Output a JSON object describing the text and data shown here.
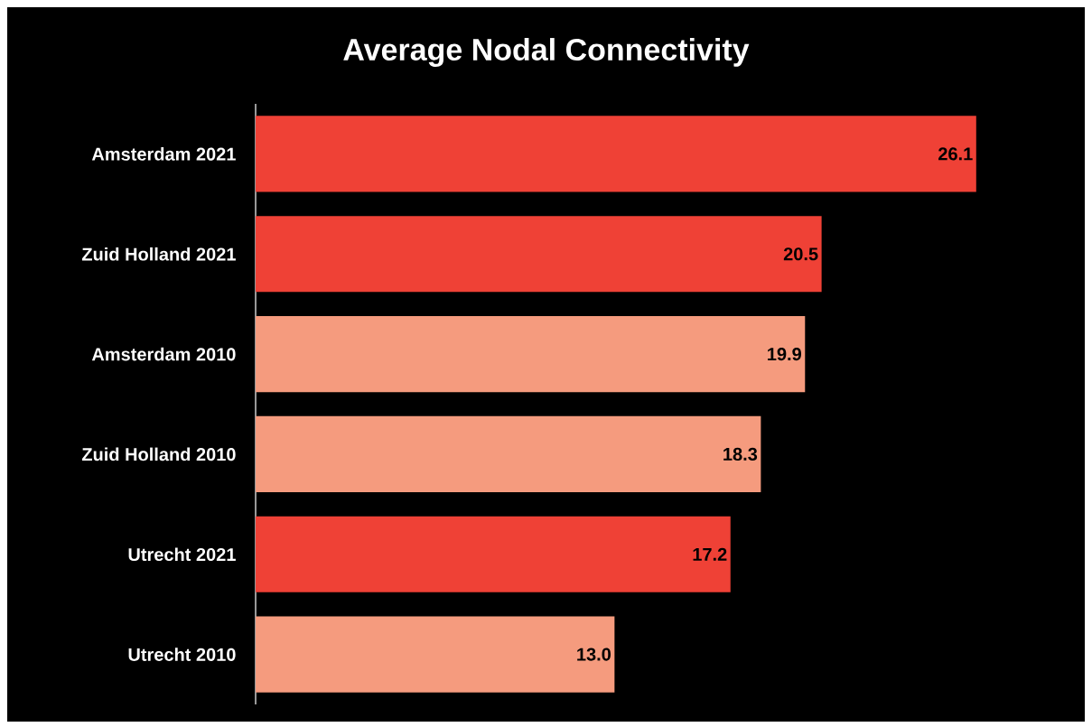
{
  "chart_data": {
    "type": "bar",
    "orientation": "horizontal",
    "title": "Average Nodal Connectivity",
    "categories": [
      "Amsterdam 2021",
      "Zuid Holland 2021",
      "Amsterdam 2010",
      "Zuid Holland 2010",
      "Utrecht 2021",
      "Utrecht 2010"
    ],
    "values": [
      26.1,
      20.5,
      19.9,
      18.3,
      17.2,
      13.0
    ],
    "colors": [
      "#ef4136",
      "#ef4136",
      "#f59b7e",
      "#f59b7e",
      "#ef4136",
      "#f59b7e"
    ],
    "value_labels": [
      "26.1",
      "20.5",
      "19.9",
      "18.3",
      "17.2",
      "13.0"
    ],
    "xlim": [
      0,
      30
    ]
  }
}
